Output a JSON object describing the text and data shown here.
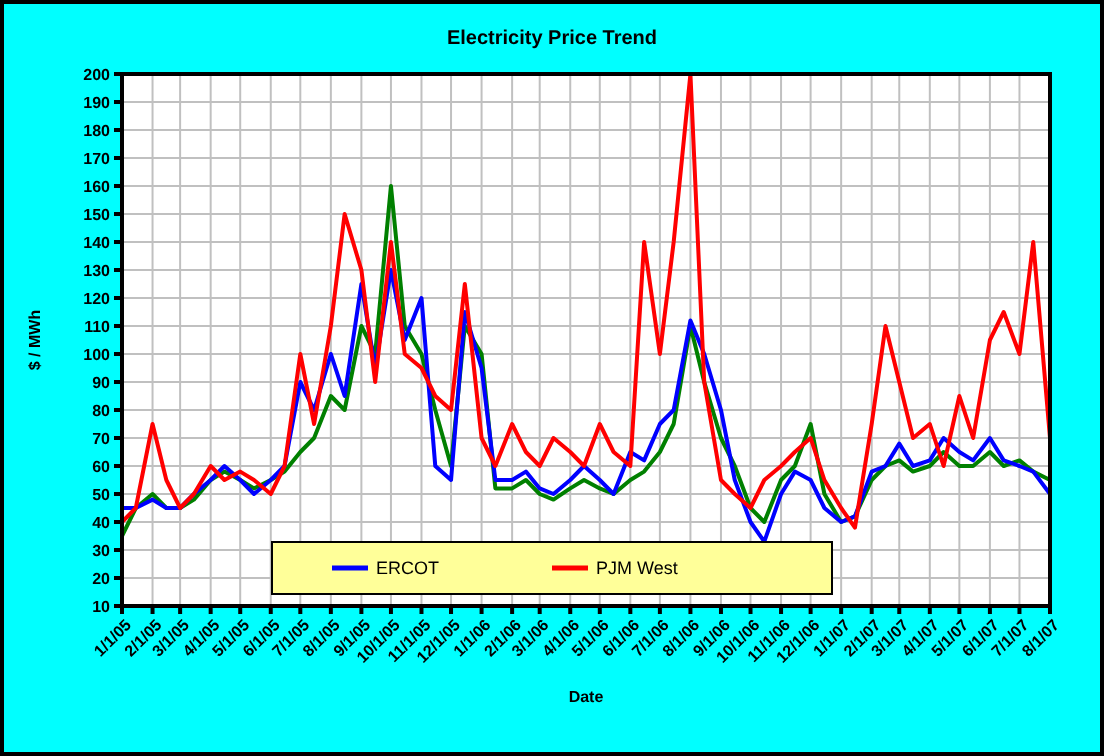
{
  "chart_data": {
    "type": "line",
    "title": "Electricity Price Trend",
    "xlabel": "Date",
    "ylabel": "$ / MWh",
    "x": [
      "2005-01-01",
      "2005-01-15",
      "2005-02-01",
      "2005-02-15",
      "2005-03-01",
      "2005-03-15",
      "2005-04-01",
      "2005-04-15",
      "2005-05-01",
      "2005-05-15",
      "2005-06-01",
      "2005-06-15",
      "2005-07-01",
      "2005-07-15",
      "2005-08-01",
      "2005-08-15",
      "2005-09-01",
      "2005-09-15",
      "2005-10-01",
      "2005-10-15",
      "2005-11-01",
      "2005-11-15",
      "2005-12-01",
      "2005-12-15",
      "2006-01-01",
      "2006-01-15",
      "2006-02-01",
      "2006-02-15",
      "2006-03-01",
      "2006-03-15",
      "2006-04-01",
      "2006-04-15",
      "2006-05-01",
      "2006-05-15",
      "2006-06-01",
      "2006-06-15",
      "2006-07-01",
      "2006-07-15",
      "2006-08-01",
      "2006-08-15",
      "2006-09-01",
      "2006-09-15",
      "2006-10-01",
      "2006-10-15",
      "2006-11-01",
      "2006-11-15",
      "2006-12-01",
      "2006-12-15",
      "2007-01-01",
      "2007-01-15",
      "2007-02-01",
      "2007-02-15",
      "2007-03-01",
      "2007-03-15",
      "2007-04-01",
      "2007-04-15",
      "2007-05-01",
      "2007-05-15",
      "2007-06-01",
      "2007-06-15",
      "2007-07-01",
      "2007-07-15",
      "2007-08-01"
    ],
    "series": [
      {
        "color": "#008000",
        "values": [
          35,
          45,
          50,
          45,
          45,
          48,
          55,
          58,
          55,
          52,
          55,
          58,
          65,
          70,
          85,
          80,
          110,
          100,
          160,
          110,
          100,
          80,
          60,
          110,
          100,
          52,
          52,
          55,
          50,
          48,
          52,
          55,
          52,
          50,
          55,
          58,
          65,
          75,
          110,
          90,
          70,
          60,
          45,
          40,
          55,
          60,
          75,
          50,
          40,
          42,
          55,
          60,
          62,
          58,
          60,
          65,
          60,
          60,
          65,
          60,
          62,
          58,
          55
        ]
      },
      {
        "name": "ERCOT",
        "color": "#0000ff",
        "values": [
          45,
          45,
          48,
          45,
          45,
          50,
          55,
          60,
          55,
          50,
          55,
          60,
          90,
          80,
          100,
          85,
          125,
          95,
          130,
          105,
          120,
          60,
          55,
          115,
          95,
          55,
          55,
          58,
          52,
          50,
          55,
          60,
          55,
          50,
          65,
          62,
          75,
          80,
          112,
          100,
          80,
          55,
          40,
          33,
          50,
          58,
          55,
          45,
          40,
          42,
          58,
          60,
          68,
          60,
          62,
          70,
          65,
          62,
          70,
          62,
          60,
          58,
          50
        ]
      },
      {
        "name": "PJM West",
        "color": "#ff0000",
        "values": [
          40,
          45,
          75,
          55,
          45,
          50,
          60,
          55,
          58,
          55,
          50,
          60,
          100,
          75,
          110,
          150,
          130,
          90,
          140,
          100,
          95,
          85,
          80,
          125,
          70,
          60,
          75,
          65,
          60,
          70,
          65,
          60,
          75,
          65,
          60,
          140,
          100,
          140,
          200,
          90,
          55,
          50,
          45,
          55,
          60,
          65,
          70,
          55,
          45,
          38,
          75,
          110,
          90,
          70,
          75,
          60,
          85,
          70,
          105,
          115,
          100,
          140,
          70
        ]
      }
    ],
    "xlim": [
      "2005-01-01",
      "2007-08-01"
    ],
    "xticks": [
      {
        "value": "2005-01-01",
        "label": "1/1/05"
      },
      {
        "value": "2005-02-01",
        "label": "2/1/05"
      },
      {
        "value": "2005-03-01",
        "label": "3/1/05"
      },
      {
        "value": "2005-04-01",
        "label": "4/1/05"
      },
      {
        "value": "2005-05-01",
        "label": "5/1/05"
      },
      {
        "value": "2005-06-01",
        "label": "6/1/05"
      },
      {
        "value": "2005-07-01",
        "label": "7/1/05"
      },
      {
        "value": "2005-08-01",
        "label": "8/1/05"
      },
      {
        "value": "2005-09-01",
        "label": "9/1/05"
      },
      {
        "value": "2005-10-01",
        "label": "10/1/05"
      },
      {
        "value": "2005-11-01",
        "label": "11/1/05"
      },
      {
        "value": "2005-12-01",
        "label": "12/1/05"
      },
      {
        "value": "2006-01-01",
        "label": "1/1/06"
      },
      {
        "value": "2006-02-01",
        "label": "2/1/06"
      },
      {
        "value": "2006-03-01",
        "label": "3/1/06"
      },
      {
        "value": "2006-04-01",
        "label": "4/1/06"
      },
      {
        "value": "2006-05-01",
        "label": "5/1/06"
      },
      {
        "value": "2006-06-01",
        "label": "6/1/06"
      },
      {
        "value": "2006-07-01",
        "label": "7/1/06"
      },
      {
        "value": "2006-08-01",
        "label": "8/1/06"
      },
      {
        "value": "2006-09-01",
        "label": "9/1/06"
      },
      {
        "value": "2006-10-01",
        "label": "10/1/06"
      },
      {
        "value": "2006-11-01",
        "label": "11/1/06"
      },
      {
        "value": "2006-12-01",
        "label": "12/1/06"
      },
      {
        "value": "2007-01-01",
        "label": "1/1/07"
      },
      {
        "value": "2007-02-01",
        "label": "2/1/07"
      },
      {
        "value": "2007-03-01",
        "label": "3/1/07"
      },
      {
        "value": "2007-04-01",
        "label": "4/1/07"
      },
      {
        "value": "2007-05-01",
        "label": "5/1/07"
      },
      {
        "value": "2007-06-01",
        "label": "6/1/07"
      },
      {
        "value": "2007-07-01",
        "label": "7/1/07"
      },
      {
        "value": "2007-08-01",
        "label": "8/1/07"
      }
    ],
    "ylim": [
      10,
      200
    ],
    "yticks": [
      10,
      20,
      30,
      40,
      50,
      60,
      70,
      80,
      90,
      100,
      110,
      120,
      130,
      140,
      150,
      160,
      170,
      180,
      190,
      200
    ],
    "grid": true,
    "legend": "bottom",
    "marker": "none",
    "line_style": "solid"
  }
}
